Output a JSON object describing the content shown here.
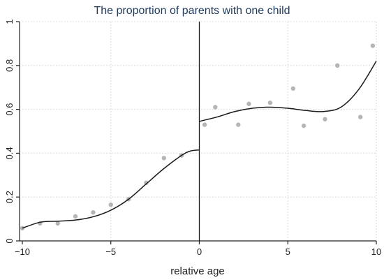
{
  "chart_data": {
    "type": "scatter",
    "title": "The proportion of parents with one child",
    "xlabel": "relative age",
    "ylabel": "",
    "xlim": [
      -10,
      10
    ],
    "ylim": [
      0,
      1
    ],
    "x_ticks": [
      -10,
      -5,
      0,
      5,
      10
    ],
    "y_ticks": [
      0,
      0.2,
      0.4,
      0.6,
      0.8,
      1
    ],
    "x_tick_labels": [
      "−10",
      "−5",
      "0",
      "5",
      "10"
    ],
    "y_tick_labels": [
      "0",
      "0.2",
      "0.4",
      "0.6",
      "0.8",
      "1"
    ],
    "grid": true,
    "cutoff_x": 0,
    "colors": {
      "points": "#b5b5b5",
      "fit_line": "#1a1a1a",
      "grid": "#dcdcdc",
      "axis": "#222222",
      "title": "#1f3a5c"
    },
    "series": [
      {
        "kind": "scatter",
        "x": [
          -10,
          -9,
          -8,
          -7,
          -6,
          -5,
          -4,
          -3,
          -2,
          -1,
          0.3,
          0.9,
          2.2,
          2.8,
          4.0,
          5.3,
          5.9,
          7.1,
          7.8,
          9.1,
          9.8
        ],
        "y": [
          0.058,
          0.08,
          0.08,
          0.112,
          0.13,
          0.165,
          0.19,
          0.265,
          0.378,
          0.39,
          0.53,
          0.61,
          0.53,
          0.625,
          0.63,
          0.695,
          0.525,
          0.555,
          0.8,
          0.565,
          0.89
        ]
      },
      {
        "kind": "line",
        "x": [
          -10,
          -9,
          -8,
          -7,
          -6,
          -5,
          -4,
          -3,
          -2,
          -1,
          -0.5,
          0
        ],
        "y": [
          0.058,
          0.085,
          0.09,
          0.095,
          0.11,
          0.14,
          0.19,
          0.26,
          0.33,
          0.39,
          0.41,
          0.415
        ]
      },
      {
        "kind": "line",
        "x": [
          0,
          1,
          2,
          3,
          4,
          5,
          6,
          7,
          8,
          9,
          10
        ],
        "y": [
          0.545,
          0.565,
          0.59,
          0.605,
          0.61,
          0.605,
          0.595,
          0.59,
          0.61,
          0.69,
          0.82
        ]
      }
    ]
  }
}
